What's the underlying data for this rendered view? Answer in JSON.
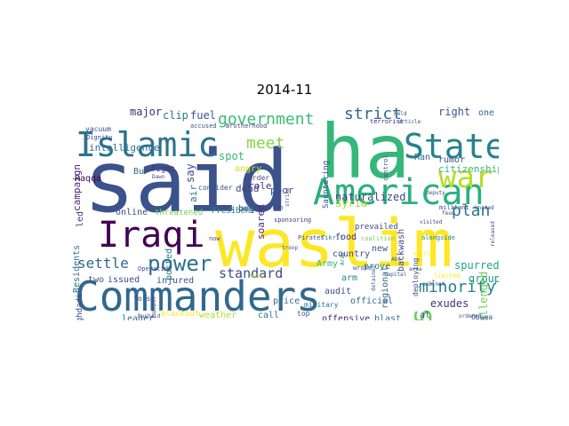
{
  "figure": {
    "title": "2014-11"
  },
  "words": [
    {
      "text": "said",
      "color": "#3b528b"
    },
    {
      "text": "waslim",
      "color": "#fde725"
    },
    {
      "text": "ha",
      "color": "#35b779"
    },
    {
      "text": "Commanders",
      "color": "#31688e"
    },
    {
      "text": "American",
      "color": "#2ab07f"
    },
    {
      "text": "Islamic",
      "color": "#2c728e"
    },
    {
      "text": "State",
      "color": "#26828e"
    },
    {
      "text": "Iraqi",
      "color": "#440154"
    },
    {
      "text": "war",
      "color": "#b5de2b"
    },
    {
      "text": "power",
      "color": "#2d708e"
    },
    {
      "text": "s",
      "color": "#6ece58"
    },
    {
      "text": "government",
      "color": "#3dbc74"
    },
    {
      "text": "minority",
      "color": "#26828e"
    },
    {
      "text": "strict",
      "color": "#31688e"
    },
    {
      "text": "meet",
      "color": "#86d549"
    },
    {
      "text": "plan",
      "color": "#2a768e"
    },
    {
      "text": "settle",
      "color": "#31688e"
    },
    {
      "text": "standard",
      "color": "#3e4a89"
    },
    {
      "text": "naturalized",
      "color": "#3f4788"
    },
    {
      "text": "Syria",
      "color": "#a5db36"
    },
    {
      "text": "citizenship",
      "color": "#37b878"
    },
    {
      "text": "exudes",
      "color": "#46327e"
    },
    {
      "text": "challenged",
      "color": "#6ece58"
    },
    {
      "text": "group",
      "color": "#1f9a8a"
    },
    {
      "text": "spurred",
      "color": "#21a685"
    },
    {
      "text": "rumor",
      "color": "#3b528b"
    },
    {
      "text": "Ran",
      "color": "#31688e"
    },
    {
      "text": "right",
      "color": "#3b528b"
    },
    {
      "text": "one",
      "color": "#31688e"
    },
    {
      "text": "major",
      "color": "#482878"
    },
    {
      "text": "clip",
      "color": "#2a788e"
    },
    {
      "text": "fuel",
      "color": "#3b528b"
    },
    {
      "text": "role",
      "color": "#46327e"
    },
    {
      "text": "say",
      "color": "#3e4a89"
    },
    {
      "text": "intelligence",
      "color": "#2c728e"
    },
    {
      "text": "Bu",
      "color": "#31688e"
    },
    {
      "text": "fight",
      "color": "#46327e"
    },
    {
      "text": "spot",
      "color": "#35b779"
    },
    {
      "text": "air",
      "color": "#2a788e"
    },
    {
      "text": "angry",
      "color": "#c8e020"
    },
    {
      "text": "dead",
      "color": "#3e4a89"
    },
    {
      "text": "poor",
      "color": "#3b528b"
    },
    {
      "text": "soared",
      "color": "#482878"
    },
    {
      "text": "begun",
      "color": "#3e4a89"
    },
    {
      "text": "Raqqa",
      "color": "#440154"
    },
    {
      "text": "campaign",
      "color": "#482878"
    },
    {
      "text": "led",
      "color": "#443983"
    },
    {
      "text": "Residents",
      "color": "#2c728e"
    },
    {
      "text": "Baghdadi",
      "color": "#3e4a89"
    },
    {
      "text": "online",
      "color": "#3e4a89"
    },
    {
      "text": "threatened",
      "color": "#6ece58"
    },
    {
      "text": "President",
      "color": "#2a788e"
    },
    {
      "text": "posted",
      "color": "#2a788e"
    },
    {
      "text": "two",
      "color": "#3b528b"
    },
    {
      "text": "issued",
      "color": "#3e4a89"
    },
    {
      "text": "injured",
      "color": "#3b528b"
    },
    {
      "text": "leader",
      "color": "#2c728e"
    },
    {
      "text": "blackout",
      "color": "#fde725"
    },
    {
      "text": "weather",
      "color": "#b5de2b"
    },
    {
      "text": "call",
      "color": "#2a788e"
    },
    {
      "text": "top",
      "color": "#3b528b"
    },
    {
      "text": "offensive",
      "color": "#482878"
    },
    {
      "text": "blast",
      "color": "#2c728e"
    },
    {
      "text": "al",
      "color": "#3b528b"
    },
    {
      "text": "Obama",
      "color": "#3b528b"
    },
    {
      "text": "official",
      "color": "#31688e"
    },
    {
      "text": "price",
      "color": "#31688e"
    },
    {
      "text": "military",
      "color": "#2a788e"
    },
    {
      "text": "audit",
      "color": "#3e4a89"
    },
    {
      "text": "arm",
      "color": "#26828e"
    },
    {
      "text": "country",
      "color": "#3e4a89"
    },
    {
      "text": "food",
      "color": "#482878"
    },
    {
      "text": "new",
      "color": "#3b528b"
    },
    {
      "text": "prove",
      "color": "#2a788e"
    },
    {
      "text": "regional",
      "color": "#31688e"
    },
    {
      "text": "backwash",
      "color": "#3e4a89"
    },
    {
      "text": "Army",
      "color": "#35b779"
    },
    {
      "text": "Sauntering",
      "color": "#3b528b"
    },
    {
      "text": "prevailed",
      "color": "#3e4a89"
    },
    {
      "text": "deploying",
      "color": "#3e4a89"
    },
    {
      "text": "alongside",
      "color": "#26828e"
    },
    {
      "text": "wrote",
      "color": "#3b528b"
    },
    {
      "text": "coalition",
      "color": "#6ece58"
    },
    {
      "text": "sponsoring",
      "color": "#46327e"
    },
    {
      "text": "Pirates",
      "color": "#3b528b"
    },
    {
      "text": "Tikrit",
      "color": "#2a788e"
    },
    {
      "text": "Arab",
      "color": "#2a788e"
    },
    {
      "text": "troop",
      "color": "#3b528b"
    },
    {
      "text": "vacuum",
      "color": "#3e4a89"
    },
    {
      "text": "Dignity",
      "color": "#3e4a89"
    },
    {
      "text": "accused",
      "color": "#3b528b"
    },
    {
      "text": "Brotherhood",
      "color": "#3e4a89"
    },
    {
      "text": "held",
      "color": "#3b528b"
    },
    {
      "text": "terrorist",
      "color": "#482878"
    },
    {
      "text": "article",
      "color": "#3b528b"
    },
    {
      "text": "consider",
      "color": "#3b528b"
    },
    {
      "text": "order",
      "color": "#3e4a89"
    },
    {
      "text": "Dawn",
      "color": "#3b528b"
    },
    {
      "text": "airport",
      "color": "#2a788e"
    },
    {
      "text": "strike",
      "color": "#3b528b"
    },
    {
      "text": "control",
      "color": "#3b528b"
    },
    {
      "text": "deputy",
      "color": "#3e4a89"
    },
    {
      "text": "fallen",
      "color": "#3e4a89"
    },
    {
      "text": "militant",
      "color": "#3b528b"
    },
    {
      "text": "United",
      "color": "#3e4a89"
    },
    {
      "text": "Operation",
      "color": "#3b528b"
    },
    {
      "text": "now",
      "color": "#3e4a89"
    },
    {
      "text": "number",
      "color": "#3b528b"
    },
    {
      "text": "forsa",
      "color": "#3e4a89"
    },
    {
      "text": "Rushaid",
      "color": "#3e4a89"
    },
    {
      "text": "limited",
      "color": "#fde725"
    },
    {
      "text": "capital",
      "color": "#3b528b"
    },
    {
      "text": "ordered",
      "color": "#3b528b"
    },
    {
      "text": "released",
      "color": "#3e4a89"
    },
    {
      "text": "cabinet",
      "color": "#3e4a89"
    },
    {
      "text": "killing",
      "color": "#fde725"
    },
    {
      "text": "Abu",
      "color": "#3b528b"
    },
    {
      "text": "area",
      "color": "#3b528b"
    },
    {
      "text": "detained",
      "color": "#3b528b"
    },
    {
      "text": "feud",
      "color": "#3e4a89"
    },
    {
      "text": "Anbar",
      "color": "#b5de2b"
    },
    {
      "text": "visited",
      "color": "#3e4a89"
    }
  ]
}
